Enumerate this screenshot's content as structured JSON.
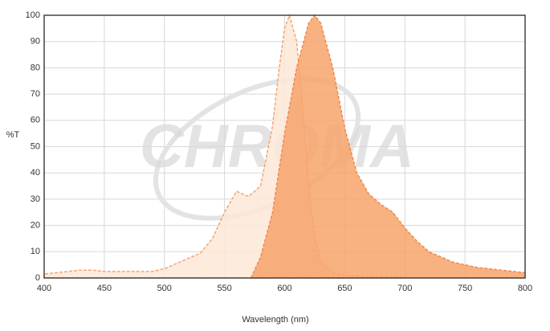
{
  "chart_data": {
    "type": "area",
    "watermark": "CHROMA",
    "ylabel": "%T",
    "xlabel": "Wavelength (nm)",
    "xlim": [
      400,
      800
    ],
    "xticks": [
      400,
      450,
      500,
      550,
      600,
      650,
      700,
      750,
      800
    ],
    "ylim": [
      0,
      100
    ],
    "yticks": [
      0,
      10,
      20,
      30,
      40,
      50,
      60,
      70,
      80,
      90,
      100
    ],
    "grid": true,
    "series": [
      {
        "color": "#fde7d8",
        "line_color": "#f5a670",
        "x": [
          400,
          410,
          420,
          430,
          440,
          450,
          460,
          470,
          480,
          490,
          500,
          510,
          520,
          530,
          540,
          550,
          560,
          570,
          580,
          590,
          595,
          600,
          604,
          610,
          615,
          620,
          625,
          630,
          640,
          650,
          670,
          700
        ],
        "values": [
          1.5,
          2,
          2.5,
          3,
          3,
          2.5,
          2.5,
          2.5,
          2.5,
          2.5,
          3.5,
          5.5,
          7.5,
          9.5,
          15,
          25,
          33,
          31,
          35,
          58,
          78,
          95,
          100,
          90,
          65,
          35,
          15,
          6,
          2,
          1,
          0.5,
          0.3
        ]
      },
      {
        "color": "#f7a36b",
        "line_color": "#f08a4b",
        "x": [
          572,
          580,
          590,
          600,
          610,
          620,
          625,
          630,
          640,
          650,
          660,
          670,
          680,
          690,
          700,
          710,
          720,
          730,
          740,
          750,
          760,
          770,
          780,
          790,
          800
        ],
        "values": [
          0,
          8,
          25,
          55,
          80,
          97,
          100,
          97,
          80,
          57,
          40,
          32,
          28,
          25,
          19,
          14,
          10,
          8,
          6,
          5,
          4,
          3.5,
          3,
          2.5,
          2
        ]
      }
    ]
  }
}
